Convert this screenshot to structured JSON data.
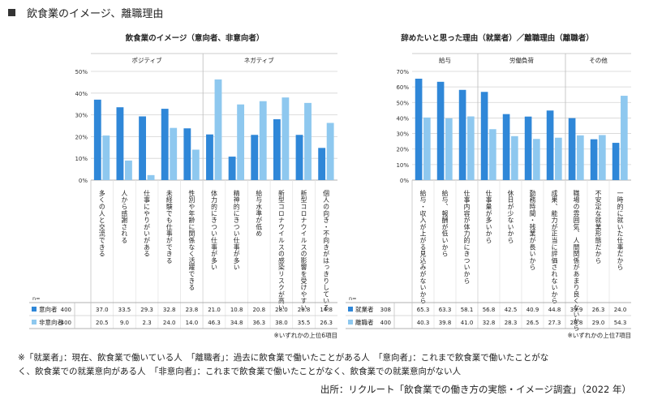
{
  "header": {
    "title": "飲食業のイメージ、離職理由"
  },
  "chart_data": [
    {
      "type": "bar",
      "title": "飲食業のイメージ（意向者、非意向者）",
      "ylim": [
        0,
        50
      ],
      "yticks": [
        "0%",
        "10%",
        "20%",
        "30%",
        "40%",
        "50%"
      ],
      "groups": [
        {
          "label": "ポジティブ",
          "start": 0,
          "end": 5
        },
        {
          "label": "ネガティブ",
          "start": 5,
          "end": 10
        }
      ],
      "n_label": "n=",
      "categories": [
        "多くの人と交流できる",
        "人から感謝される",
        "仕事にやりがいがある",
        "未経験でも仕事ができる",
        "性別や年齢に関係なく活躍できる",
        "体力的にきつい仕事が多い",
        "精神的にきつい仕事が多い",
        "給与水準が低め",
        "新型コロナウイルスの感染リスクが高い",
        "新型コロナウイルスの影響を受けやすい",
        "個人の向き・不向きがはっきりしている"
      ],
      "series": [
        {
          "name": "意向者",
          "n": "400",
          "color": "#2f87d8",
          "values": [
            37.0,
            33.5,
            29.3,
            32.8,
            23.8,
            21.0,
            10.8,
            20.8,
            28.0,
            20.8,
            14.8
          ],
          "labels": [
            "37.0",
            "33.5",
            "29.3",
            "32.8",
            "23.8",
            "21.0",
            "10.8",
            "20.8",
            "28.0",
            "20.8",
            "14.8"
          ]
        },
        {
          "name": "非意向者",
          "n": "400",
          "color": "#8ec8ef",
          "values": [
            20.5,
            9.0,
            2.3,
            24.0,
            14.0,
            46.3,
            34.8,
            36.3,
            38.0,
            35.5,
            26.3
          ],
          "labels": [
            "20.5",
            "9.0",
            "2.3",
            "24.0",
            "14.0",
            "46.3",
            "34.8",
            "36.3",
            "38.0",
            "35.5",
            "26.3"
          ]
        }
      ],
      "note": "※いずれかの上位6項目"
    },
    {
      "type": "bar",
      "title": "辞めたいと思った理由（就業者）／離職理由（離職者）",
      "ylim": [
        0,
        70
      ],
      "yticks": [
        "0%",
        "10%",
        "20%",
        "30%",
        "40%",
        "50%",
        "60%",
        "70%"
      ],
      "groups": [
        {
          "label": "給与",
          "start": 0,
          "end": 3
        },
        {
          "label": "労働負荷",
          "start": 3,
          "end": 7
        },
        {
          "label": "その他",
          "start": 7,
          "end": 11
        }
      ],
      "n_label": "n=",
      "categories": [
        "給与・収入が上がる見込みがないから",
        "給与、報酬が低いから",
        "仕事内容が体力的にきついから",
        "仕事量が多いから",
        "休日が少ないから",
        "勤務時間・残業が長いから",
        "成果、能力が正当に評価されないから",
        "職場の雰囲気、人間関係があまり良くないから",
        "不安定な就業形態だから",
        "一時的に就いた仕事だから"
      ],
      "series": [
        {
          "name": "就業者",
          "n": "308",
          "color": "#2f87d8",
          "values": [
            65.3,
            63.3,
            58.1,
            56.8,
            42.5,
            40.9,
            44.8,
            39.9,
            26.3,
            24.0
          ],
          "labels": [
            "65.3",
            "63.3",
            "58.1",
            "56.8",
            "42.5",
            "40.9",
            "44.8",
            "39.9",
            "26.3",
            "24.0"
          ]
        },
        {
          "name": "離職者",
          "n": "400",
          "color": "#8ec8ef",
          "values": [
            40.3,
            39.8,
            41.0,
            32.8,
            28.3,
            26.5,
            27.3,
            28.8,
            29.0,
            54.3
          ],
          "labels": [
            "40.3",
            "39.8",
            "41.0",
            "32.8",
            "28.3",
            "26.5",
            "27.3",
            "28.8",
            "29.0",
            "54.3"
          ]
        }
      ],
      "note": "※いずれかの上位7項目"
    }
  ],
  "footnote": {
    "line1": "※「就業者」：現在、飲食業で働いている人　「離職者」：過去に飲食業で働いたことがある人　「意向者」：これまで飲食業で働いたことがな",
    "line2": "く、飲食業での就業意向がある人　「非意向者」：これまで飲食業で働いたことがなく、飲食業での就業意向がない人"
  },
  "source": "出所：リクルート「飲食業での働き方の実態・イメージ調査」（2022 年）"
}
